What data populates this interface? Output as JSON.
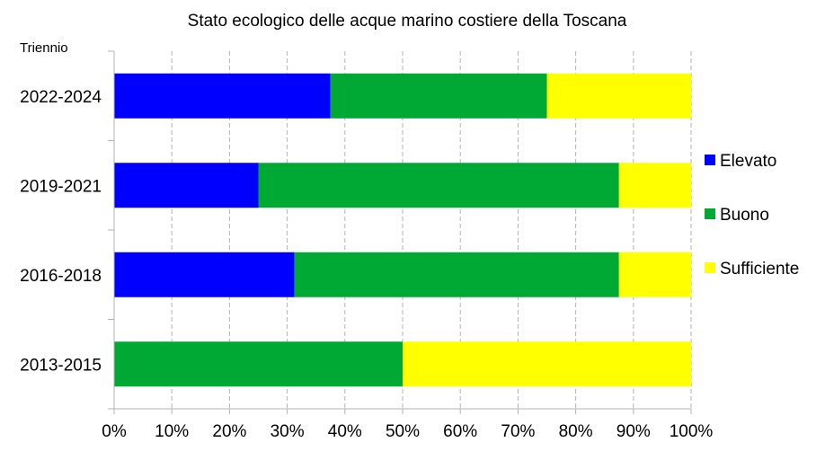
{
  "chart_data": {
    "type": "bar",
    "orientation": "horizontal",
    "stacked": "percent",
    "title": "Stato ecologico delle acque marino costiere della Toscana",
    "ylabel": "Triennio",
    "xlabel": "",
    "categories": [
      "2022-2024",
      "2019-2021",
      "2016-2018",
      "2013-2015"
    ],
    "series": [
      {
        "name": "Elevato",
        "color": "#0000ff",
        "values": [
          37.5,
          25,
          31.25,
          0
        ]
      },
      {
        "name": "Buono",
        "color": "#00a933",
        "values": [
          37.5,
          62.5,
          56.25,
          50
        ]
      },
      {
        "name": "Sufficiente",
        "color": "#ffff00",
        "values": [
          25,
          12.5,
          12.5,
          50
        ]
      }
    ],
    "xticks": [
      "0%",
      "10%",
      "20%",
      "30%",
      "40%",
      "50%",
      "60%",
      "70%",
      "80%",
      "90%",
      "100%"
    ],
    "xlim": [
      0,
      100
    ],
    "grid": "vertical-dashed",
    "legend": "right"
  }
}
